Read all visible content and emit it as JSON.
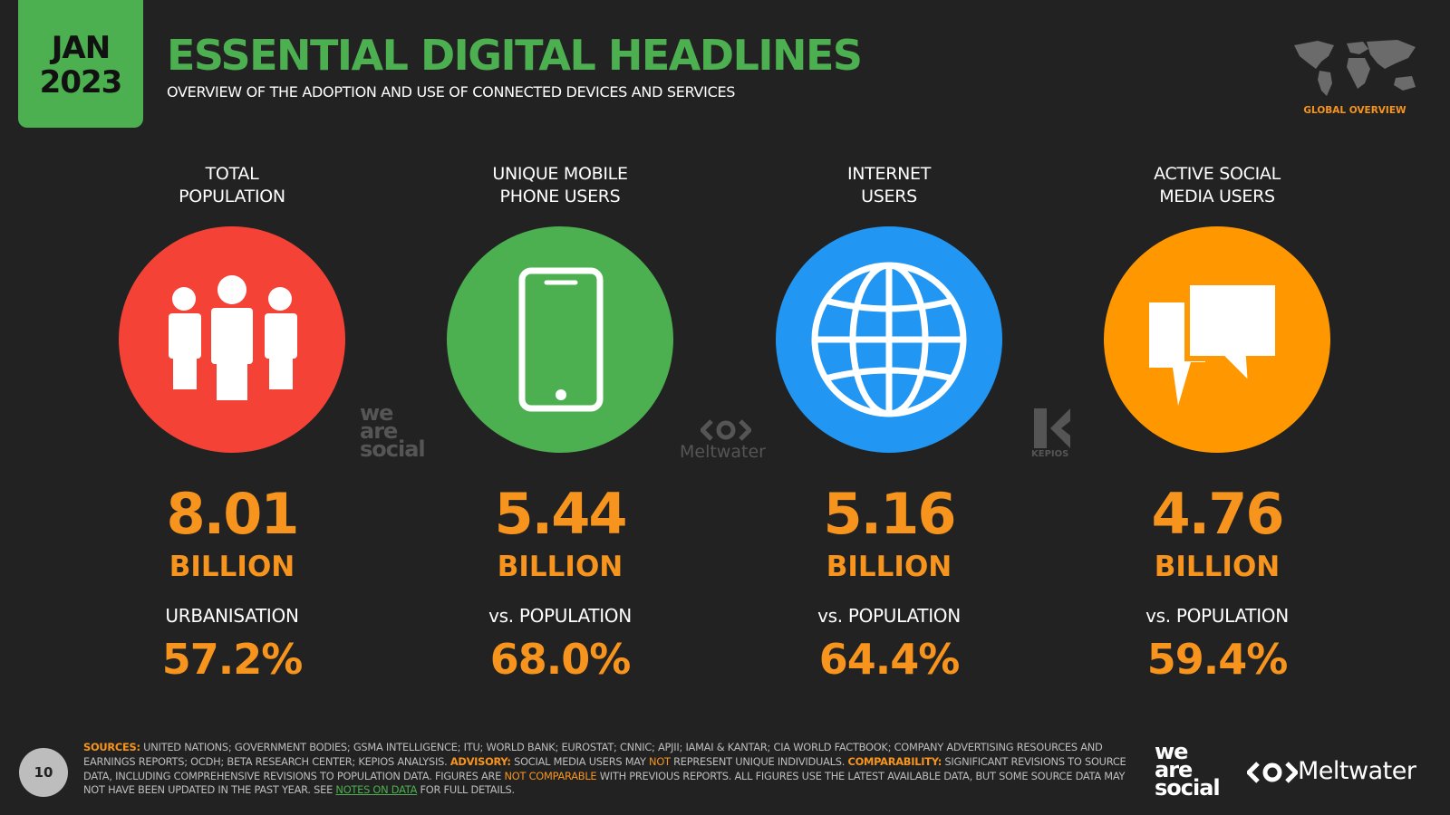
{
  "header": {
    "badge_month": "JAN",
    "badge_year": "2023",
    "title": "ESSENTIAL DIGITAL HEADLINES",
    "subtitle": "OVERVIEW OF THE ADOPTION AND USE OF CONNECTED DEVICES AND SERVICES",
    "section": "GLOBAL OVERVIEW"
  },
  "cards": [
    {
      "label_lines": [
        "TOTAL",
        "POPULATION"
      ],
      "value": "8.01",
      "unit": "BILLION",
      "sub_label": "URBANISATION",
      "percent": "57.2%"
    },
    {
      "label_lines": [
        "UNIQUE MOBILE",
        "PHONE USERS"
      ],
      "value": "5.44",
      "unit": "BILLION",
      "sub_label": "vs. POPULATION",
      "percent": "68.0%"
    },
    {
      "label_lines": [
        "INTERNET",
        "USERS"
      ],
      "value": "5.16",
      "unit": "BILLION",
      "sub_label": "vs. POPULATION",
      "percent": "64.4%"
    },
    {
      "label_lines": [
        "ACTIVE SOCIAL",
        "MEDIA USERS"
      ],
      "value": "4.76",
      "unit": "BILLION",
      "sub_label": "vs. POPULATION",
      "percent": "59.4%"
    }
  ],
  "watermarks": {
    "we_are_social": [
      "we",
      "are",
      "social"
    ],
    "meltwater": "Meltwater",
    "kepios": "KEPIOS"
  },
  "footer": {
    "page_number": "10",
    "segments": [
      "SOURCES:",
      " UNITED NATIONS; GOVERNMENT BODIES; GSMA INTELLIGENCE; ITU; WORLD BANK; EUROSTAT; CNNIC; APJII; IAMAI & KANTAR; CIA WORLD FACTBOOK; COMPANY ADVERTISING RESOURCES AND EARNINGS REPORTS; OCDH; BETA RESEARCH CENTER; KEPIOS ANALYSIS. ",
      "ADVISORY:",
      " SOCIAL MEDIA USERS MAY ",
      "NOT",
      " REPRESENT UNIQUE INDIVIDUALS. ",
      "COMPARABILITY:",
      " SIGNIFICANT REVISIONS TO SOURCE DATA, INCLUDING COMPREHENSIVE REVISIONS TO POPULATION DATA. FIGURES ARE ",
      "NOT COMPARABLE",
      " WITH PREVIOUS REPORTS. ALL FIGURES USE THE LATEST AVAILABLE DATA, BUT SOME SOURCE DATA MAY NOT HAVE BEEN UPDATED IN THE PAST YEAR. SEE ",
      "NOTES ON DATA",
      " FOR FULL DETAILS."
    ],
    "logo_we_are_social": [
      "we",
      "are",
      "social"
    ],
    "logo_meltwater": "Meltwater"
  }
}
